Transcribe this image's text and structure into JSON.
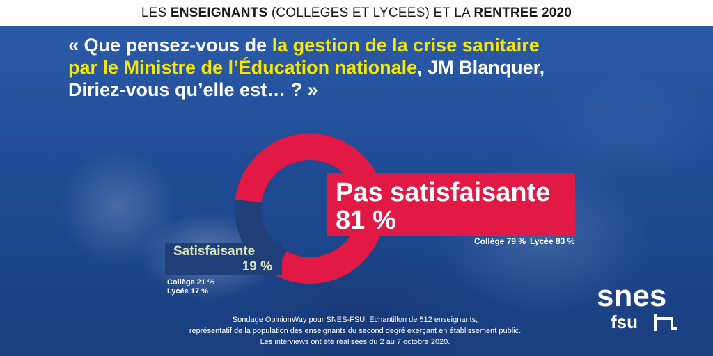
{
  "header": {
    "part1": "LES ",
    "part2": "ENSEIGNANTS",
    "part3": " (COLLEGES ET LYCEES) ET LA ",
    "part4": "RENTREE 2020"
  },
  "question": {
    "prefix": "« Que pensez-vous de ",
    "highlight1": "la gestion de la crise sanitaire",
    "highlight2": "par le Ministre de l’Éducation nationale",
    "suffix1": ", JM Blanquer,",
    "line3": "Diriez-vous qu’elle est… ? »"
  },
  "chart_data": {
    "type": "pie",
    "categories": [
      "Pas satisfaisante",
      "Satisfaisante"
    ],
    "values": [
      81,
      19
    ],
    "value_labels": [
      "81 %",
      "19 %"
    ],
    "colors": [
      "#e11944",
      "#1e3f78"
    ],
    "breakdown": {
      "pas_satisfaisante": {
        "college": "Collège 79 %",
        "lycee": "Lycée 83 %"
      },
      "satisfaisante": {
        "college": "Collège 21 %",
        "lycee": "Lycée 17 %"
      }
    }
  },
  "footnote": {
    "line1": "Sondage OpinionWay pour SNES-FSU. Echantillon de 512 enseignants,",
    "line2": "représentatif de la population des enseignants du second degré exerçant en établissement public.",
    "line3": "Les interviews ont été réalisées du 2 au 7 octobre 2020."
  },
  "logo": {
    "top": "snes",
    "bottom": "fsu"
  }
}
